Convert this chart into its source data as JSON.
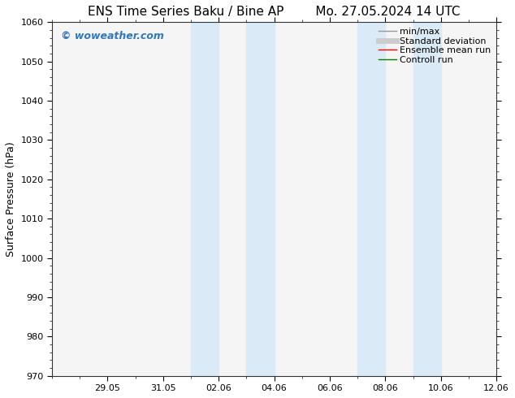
{
  "title_left": "ENS Time Series Baku / Bine AP",
  "title_right": "Mo. 27.05.2024 14 UTC",
  "ylabel": "Surface Pressure (hPa)",
  "ylim": [
    970,
    1060
  ],
  "yticks": [
    970,
    980,
    990,
    1000,
    1010,
    1020,
    1030,
    1040,
    1050,
    1060
  ],
  "xlim": [
    0,
    16
  ],
  "xtick_positions": [
    2,
    4,
    6,
    8,
    10,
    12,
    14,
    16
  ],
  "xtick_labels": [
    "29.05",
    "31.05",
    "02.06",
    "04.06",
    "06.06",
    "08.06",
    "10.06",
    "12.06"
  ],
  "shaded_regions": [
    {
      "x_start": 5.0,
      "x_end": 6.0
    },
    {
      "x_start": 7.0,
      "x_end": 8.0
    },
    {
      "x_start": 11.0,
      "x_end": 12.0
    },
    {
      "x_start": 13.0,
      "x_end": 14.0
    }
  ],
  "shade_color": "#daeaf7",
  "background_color": "#ffffff",
  "plot_bg_color": "#f5f5f5",
  "watermark_text": "© woweather.com",
  "watermark_color": "#3377bb",
  "legend_items": [
    {
      "label": "min/max",
      "color": "#999999",
      "linewidth": 1.0,
      "linestyle": "-"
    },
    {
      "label": "Standard deviation",
      "color": "#cccccc",
      "linewidth": 5,
      "linestyle": "-"
    },
    {
      "label": "Ensemble mean run",
      "color": "#ff0000",
      "linewidth": 1.0,
      "linestyle": "-"
    },
    {
      "label": "Controll run",
      "color": "#008000",
      "linewidth": 1.0,
      "linestyle": "-"
    }
  ],
  "title_fontsize": 11,
  "axis_label_fontsize": 9,
  "tick_fontsize": 8,
  "legend_fontsize": 8,
  "watermark_fontsize": 9
}
